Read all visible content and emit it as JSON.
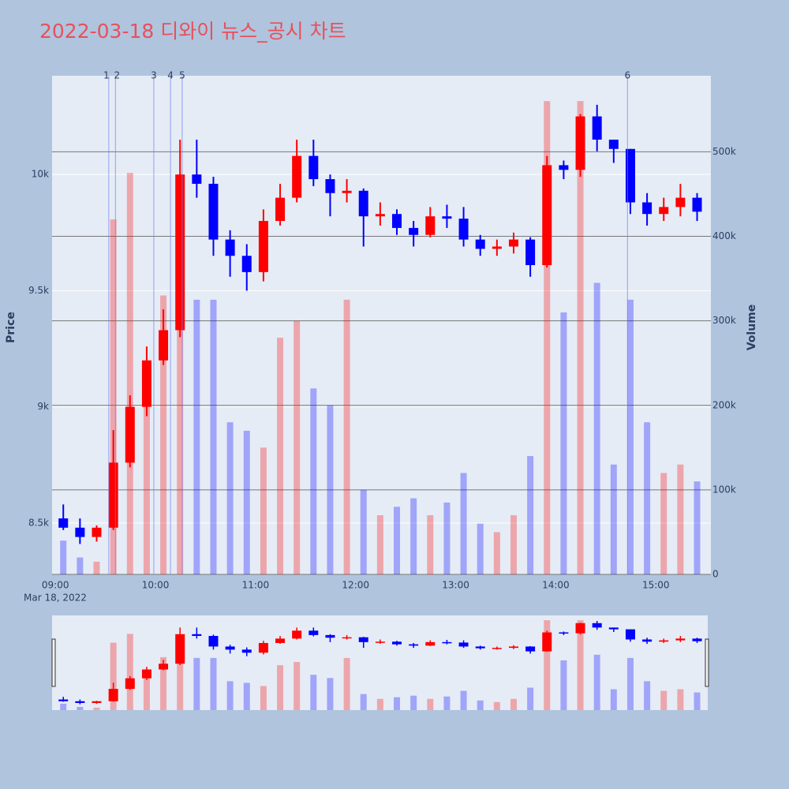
{
  "chart_data": {
    "type": "candlestick",
    "title": "2022-03-18 디와이 뉴스_공시 차트",
    "y_title": "Price",
    "y2_title": "Volume",
    "x_date_label": "Mar 18, 2022",
    "increasing_color": "#ff0000",
    "decreasing_color": "#0000ff",
    "x": [
      "09:00",
      "09:10",
      "09:20",
      "09:30",
      "09:40",
      "09:50",
      "10:00",
      "10:10",
      "10:20",
      "10:30",
      "10:40",
      "10:50",
      "11:00",
      "11:10",
      "11:20",
      "11:30",
      "11:40",
      "11:50",
      "12:00",
      "12:10",
      "12:20",
      "12:30",
      "12:40",
      "12:50",
      "13:00",
      "13:10",
      "13:20",
      "13:30",
      "13:40",
      "13:50",
      "14:00",
      "14:10",
      "14:20",
      "14:30",
      "14:40",
      "14:50",
      "15:00",
      "15:10",
      "15:20"
    ],
    "open": [
      8520,
      8480,
      8440,
      8480,
      8760,
      9000,
      9200,
      9330,
      10000,
      9960,
      9720,
      9650,
      9580,
      9800,
      9900,
      10080,
      9980,
      9920,
      9930,
      9820,
      9830,
      9770,
      9740,
      9820,
      9810,
      9720,
      9680,
      9690,
      9720,
      9610,
      10040,
      10020,
      10250,
      10150,
      10110,
      9880,
      9830,
      9860,
      9900
    ],
    "high": [
      8580,
      8520,
      8490,
      8900,
      9050,
      9260,
      9420,
      10150,
      10150,
      9990,
      9760,
      9700,
      9850,
      9960,
      10150,
      10150,
      10000,
      9980,
      9940,
      9880,
      9850,
      9800,
      9860,
      9870,
      9860,
      9740,
      9720,
      9750,
      9730,
      10080,
      10060,
      10260,
      10300,
      10150,
      10110,
      9920,
      9900,
      9960,
      9920
    ],
    "low": [
      8470,
      8410,
      8420,
      8470,
      8740,
      8960,
      9180,
      9300,
      9900,
      9650,
      9560,
      9500,
      9540,
      9780,
      9880,
      9950,
      9820,
      9880,
      9690,
      9780,
      9740,
      9690,
      9730,
      9770,
      9690,
      9650,
      9650,
      9660,
      9560,
      9600,
      9980,
      9990,
      10100,
      10050,
      9830,
      9780,
      9800,
      9820,
      9800
    ],
    "close": [
      8480,
      8440,
      8480,
      8760,
      9000,
      9200,
      9330,
      10000,
      9960,
      9720,
      9650,
      9580,
      9800,
      9900,
      10080,
      9980,
      9920,
      9930,
      9820,
      9830,
      9770,
      9740,
      9820,
      9810,
      9720,
      9680,
      9690,
      9720,
      9610,
      10040,
      10020,
      10250,
      10150,
      10110,
      9880,
      9830,
      9860,
      9900,
      9840
    ],
    "volume": [
      40000,
      20000,
      15000,
      420000,
      475000,
      200000,
      330000,
      340000,
      325000,
      325000,
      180000,
      170000,
      150000,
      280000,
      300000,
      220000,
      200000,
      325000,
      100000,
      70000,
      80000,
      90000,
      70000,
      85000,
      120000,
      60000,
      50000,
      70000,
      140000,
      560000,
      310000,
      560000,
      345000,
      130000,
      325000,
      180000,
      120000,
      130000,
      110000
    ],
    "xlim": [
      "08:58",
      "15:33"
    ],
    "xticks": [
      "09:00",
      "10:00",
      "11:00",
      "12:00",
      "13:00",
      "14:00",
      "15:00"
    ],
    "ylim": [
      8279,
      10425
    ],
    "yticks": [
      {
        "value": 8500,
        "label": "8.5k"
      },
      {
        "value": 9000,
        "label": "9k"
      },
      {
        "value": 9500,
        "label": "9.5k"
      },
      {
        "value": 10000,
        "label": "10k"
      }
    ],
    "y2lim": [
      0,
      590000
    ],
    "y2ticks": [
      0,
      {
        "value": 100000,
        "label": "100k"
      },
      {
        "value": 200000,
        "label": "200k"
      },
      {
        "value": 300000,
        "label": "300k"
      },
      {
        "value": 400000,
        "label": "400k"
      },
      {
        "value": 500000,
        "label": "500k"
      }
    ],
    "annotations": [
      {
        "label": "1",
        "x": "09:32"
      },
      {
        "label": "2",
        "x": "09:36"
      },
      {
        "label": "3",
        "x": "09:59"
      },
      {
        "label": "4",
        "x": "10:09"
      },
      {
        "label": "5",
        "x": "10:16"
      },
      {
        "label": "6",
        "x": "14:43"
      }
    ],
    "grid": true,
    "rangeslider": true
  }
}
